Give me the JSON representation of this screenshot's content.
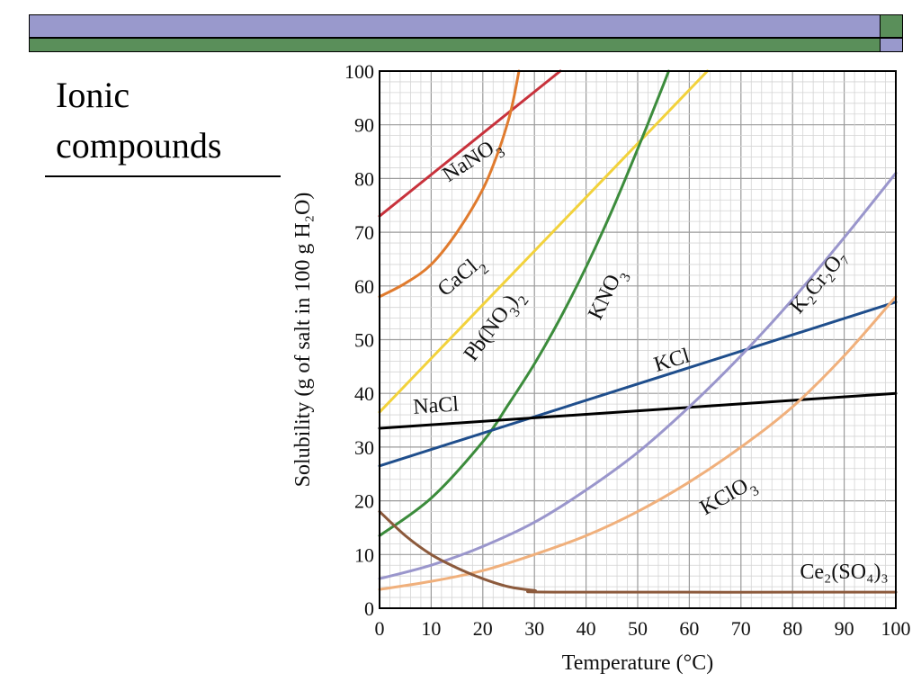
{
  "slide": {
    "title": "Ionic\ncompounds",
    "colors": {
      "band_purple": "#9999cc",
      "band_green": "#5a8f5a"
    }
  },
  "chart_data": {
    "type": "line",
    "title": "",
    "xlabel": "Temperature (°C)",
    "ylabel": "Solubility (g of salt in 100 g H₂O)",
    "xlim": [
      0,
      100
    ],
    "ylim": [
      0,
      100
    ],
    "xticks": [
      0,
      10,
      20,
      30,
      40,
      50,
      60,
      70,
      80,
      90,
      100
    ],
    "yticks": [
      0,
      10,
      20,
      30,
      40,
      50,
      60,
      70,
      80,
      90,
      100
    ],
    "grid": true,
    "series": [
      {
        "name": "NaNO₃",
        "color": "#c8323c",
        "points": [
          [
            0,
            73
          ],
          [
            35,
            100
          ]
        ]
      },
      {
        "name": "CaCl₂",
        "color": "#e07b2e",
        "points": [
          [
            0,
            58
          ],
          [
            5,
            60.5
          ],
          [
            10,
            64
          ],
          [
            15,
            70
          ],
          [
            20,
            78
          ],
          [
            23,
            85
          ],
          [
            25,
            91
          ],
          [
            26,
            95
          ],
          [
            27,
            100
          ]
        ]
      },
      {
        "name": "Pb(NO₃)₂",
        "color": "#f2d23c",
        "points": [
          [
            0,
            36.5
          ],
          [
            10,
            46.5
          ],
          [
            20,
            56.5
          ],
          [
            30,
            66.5
          ],
          [
            40,
            76.5
          ],
          [
            50,
            86.5
          ],
          [
            60,
            96.5
          ],
          [
            63.5,
            100
          ]
        ]
      },
      {
        "name": "KNO₃",
        "color": "#3c8c3c",
        "points": [
          [
            0,
            13.5
          ],
          [
            10,
            20.5
          ],
          [
            20,
            31
          ],
          [
            25,
            38
          ],
          [
            30,
            45.5
          ],
          [
            35,
            54
          ],
          [
            40,
            63.5
          ],
          [
            45,
            74
          ],
          [
            50,
            85.5
          ],
          [
            55,
            97.5
          ],
          [
            56,
            100
          ]
        ]
      },
      {
        "name": "KCl",
        "color": "#1f4e8c",
        "points": [
          [
            0,
            26.5
          ],
          [
            100,
            57
          ]
        ]
      },
      {
        "name": "NaCl",
        "color": "#000000",
        "points": [
          [
            0,
            33.5
          ],
          [
            100,
            40
          ]
        ]
      },
      {
        "name": "K₂Cr₂O₇",
        "color": "#9a96cc",
        "points": [
          [
            0,
            5.5
          ],
          [
            10,
            8
          ],
          [
            20,
            11.5
          ],
          [
            30,
            16
          ],
          [
            40,
            22
          ],
          [
            50,
            29
          ],
          [
            60,
            37.5
          ],
          [
            70,
            47
          ],
          [
            80,
            57.5
          ],
          [
            90,
            69
          ],
          [
            100,
            81
          ]
        ]
      },
      {
        "name": "KClO₃",
        "color": "#f0b07c",
        "points": [
          [
            0,
            3.5
          ],
          [
            10,
            5
          ],
          [
            20,
            7
          ],
          [
            30,
            10
          ],
          [
            40,
            13.5
          ],
          [
            50,
            18
          ],
          [
            60,
            23.5
          ],
          [
            70,
            30
          ],
          [
            80,
            37.5
          ],
          [
            90,
            47
          ],
          [
            100,
            58
          ]
        ]
      },
      {
        "name": "Ce₂(SO₄)₃",
        "color": "#8c5a3c",
        "points": [
          [
            0,
            18
          ],
          [
            5,
            13.5
          ],
          [
            10,
            10
          ],
          [
            15,
            7.5
          ],
          [
            20,
            5.5
          ],
          [
            25,
            4
          ],
          [
            30,
            3.3
          ],
          [
            35,
            3
          ],
          [
            100,
            3
          ]
        ]
      }
    ],
    "curve_labels": [
      {
        "series": "NaNO₃",
        "text": "NaNO",
        "sub": "3"
      },
      {
        "series": "CaCl₂",
        "text": "CaCl",
        "sub": "2"
      },
      {
        "series": "Pb(NO₃)₂",
        "text": "Pb(NO",
        "sub": "3",
        "suffix": ")",
        "sub2": "2"
      },
      {
        "series": "KNO₃",
        "text": "KNO",
        "sub": "3"
      },
      {
        "series": "KCl",
        "text": "KCl"
      },
      {
        "series": "NaCl",
        "text": "NaCl"
      },
      {
        "series": "K₂Cr₂O₇",
        "text": "K₂Cr₂O₇"
      },
      {
        "series": "KClO₃",
        "text": "KClO",
        "sub": "3"
      },
      {
        "series": "Ce₂(SO₄)₃",
        "text": "Ce₂(SO₄)₃"
      }
    ]
  }
}
